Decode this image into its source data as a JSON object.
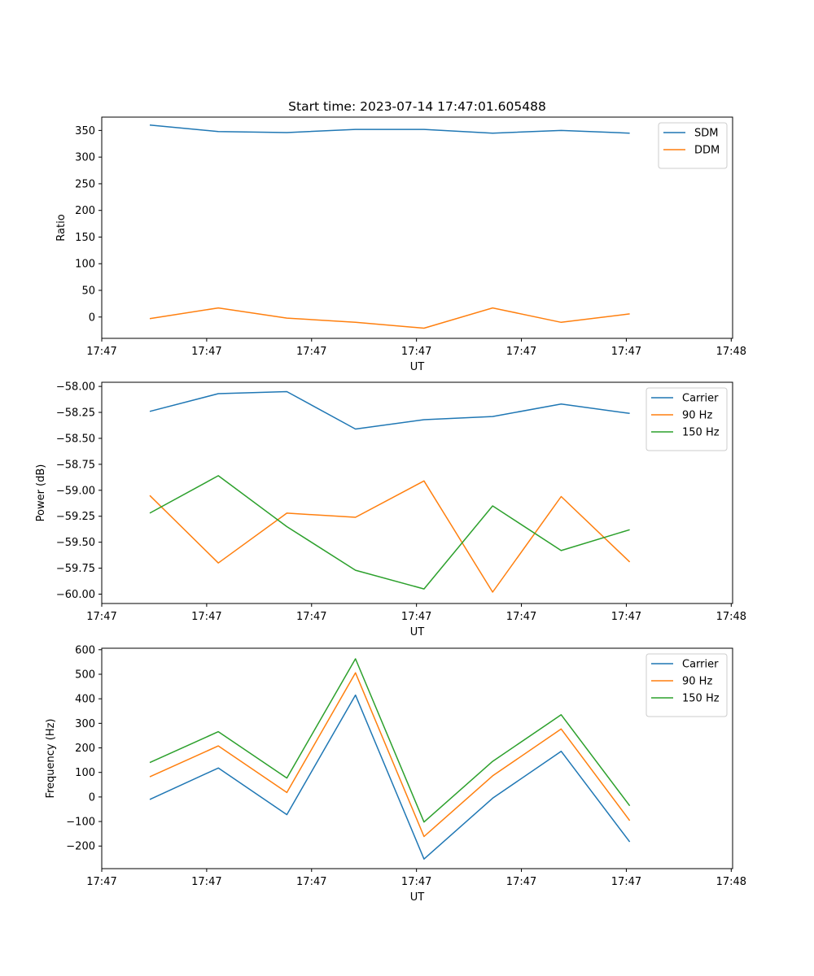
{
  "figure_title": "Start time: 2023-07-14 17:47:01.605488",
  "chart_data": [
    {
      "type": "line",
      "title": "Start time: 2023-07-14 17:47:01.605488",
      "xlabel": "UT",
      "ylabel": "Ratio",
      "x": [
        1,
        2,
        3,
        4,
        5,
        6,
        7,
        8
      ],
      "xlim": [
        0.3,
        9.5
      ],
      "x_ticks": [
        0.3,
        1.83,
        3.36,
        4.89,
        6.42,
        7.95,
        9.48
      ],
      "x_tick_labels": [
        "17:47",
        "17:47",
        "17:47",
        "17:47",
        "17:47",
        "17:47",
        "17:48"
      ],
      "ylim": [
        -40,
        375
      ],
      "y_ticks": [
        0,
        50,
        100,
        150,
        200,
        250,
        300,
        350
      ],
      "y_tick_labels": [
        "0",
        "50",
        "100",
        "150",
        "200",
        "250",
        "300",
        "350"
      ],
      "legend_position": "top-right",
      "series": [
        {
          "name": "SDM",
          "color": "#1f77b4",
          "values": [
            360,
            348,
            346,
            352,
            352,
            345,
            350,
            345
          ]
        },
        {
          "name": "DDM",
          "color": "#ff7f0e",
          "values": [
            -3,
            17,
            -2,
            -10,
            -21,
            17,
            -10,
            6
          ]
        }
      ]
    },
    {
      "type": "line",
      "title": "",
      "xlabel": "UT",
      "ylabel": "Power (dB)",
      "x": [
        1,
        2,
        3,
        4,
        5,
        6,
        7,
        8
      ],
      "xlim": [
        0.3,
        9.5
      ],
      "x_ticks": [
        0.3,
        1.83,
        3.36,
        4.89,
        6.42,
        7.95,
        9.48
      ],
      "x_tick_labels": [
        "17:47",
        "17:47",
        "17:47",
        "17:47",
        "17:47",
        "17:47",
        "17:48"
      ],
      "ylim": [
        -60.09,
        -57.96
      ],
      "y_ticks": [
        -58.0,
        -58.25,
        -58.5,
        -58.75,
        -59.0,
        -59.25,
        -59.5,
        -59.75,
        -60.0
      ],
      "y_tick_labels": [
        "−58.00",
        "−58.25",
        "−58.50",
        "−58.75",
        "−59.00",
        "−59.25",
        "−59.50",
        "−59.75",
        "−60.00"
      ],
      "legend_position": "top-right",
      "series": [
        {
          "name": "Carrier",
          "color": "#1f77b4",
          "values": [
            -58.24,
            -58.07,
            -58.05,
            -58.41,
            -58.32,
            -58.29,
            -58.17,
            -58.26
          ]
        },
        {
          "name": "90 Hz",
          "color": "#ff7f0e",
          "values": [
            -59.05,
            -59.7,
            -59.22,
            -59.26,
            -58.91,
            -59.98,
            -59.06,
            -59.69
          ]
        },
        {
          "name": "150 Hz",
          "color": "#2ca02c",
          "values": [
            -59.22,
            -58.86,
            -59.35,
            -59.77,
            -59.95,
            -59.15,
            -59.58,
            -59.38
          ]
        }
      ]
    },
    {
      "type": "line",
      "title": "",
      "xlabel": "UT",
      "ylabel": "Frequency (Hz)",
      "x": [
        1,
        2,
        3,
        4,
        5,
        6,
        7,
        8
      ],
      "xlim": [
        0.3,
        9.5
      ],
      "x_ticks": [
        0.3,
        1.83,
        3.36,
        4.89,
        6.42,
        7.95,
        9.48
      ],
      "x_tick_labels": [
        "17:47",
        "17:47",
        "17:47",
        "17:47",
        "17:47",
        "17:47",
        "17:48"
      ],
      "ylim": [
        -292,
        606
      ],
      "y_ticks": [
        600,
        500,
        400,
        300,
        200,
        100,
        0,
        -100,
        -200
      ],
      "y_tick_labels": [
        "600",
        "500",
        "400",
        "300",
        "200",
        "100",
        "0",
        "−100",
        "−200"
      ],
      "legend_position": "top-right",
      "series": [
        {
          "name": "Carrier",
          "color": "#1f77b4",
          "values": [
            -10,
            118,
            -72,
            415,
            -253,
            -5,
            186,
            -183
          ]
        },
        {
          "name": "90 Hz",
          "color": "#ff7f0e",
          "values": [
            82,
            208,
            18,
            506,
            -161,
            86,
            277,
            -96
          ]
        },
        {
          "name": "150 Hz",
          "color": "#2ca02c",
          "values": [
            140,
            266,
            77,
            563,
            -102,
            145,
            335,
            -36
          ]
        }
      ]
    }
  ]
}
